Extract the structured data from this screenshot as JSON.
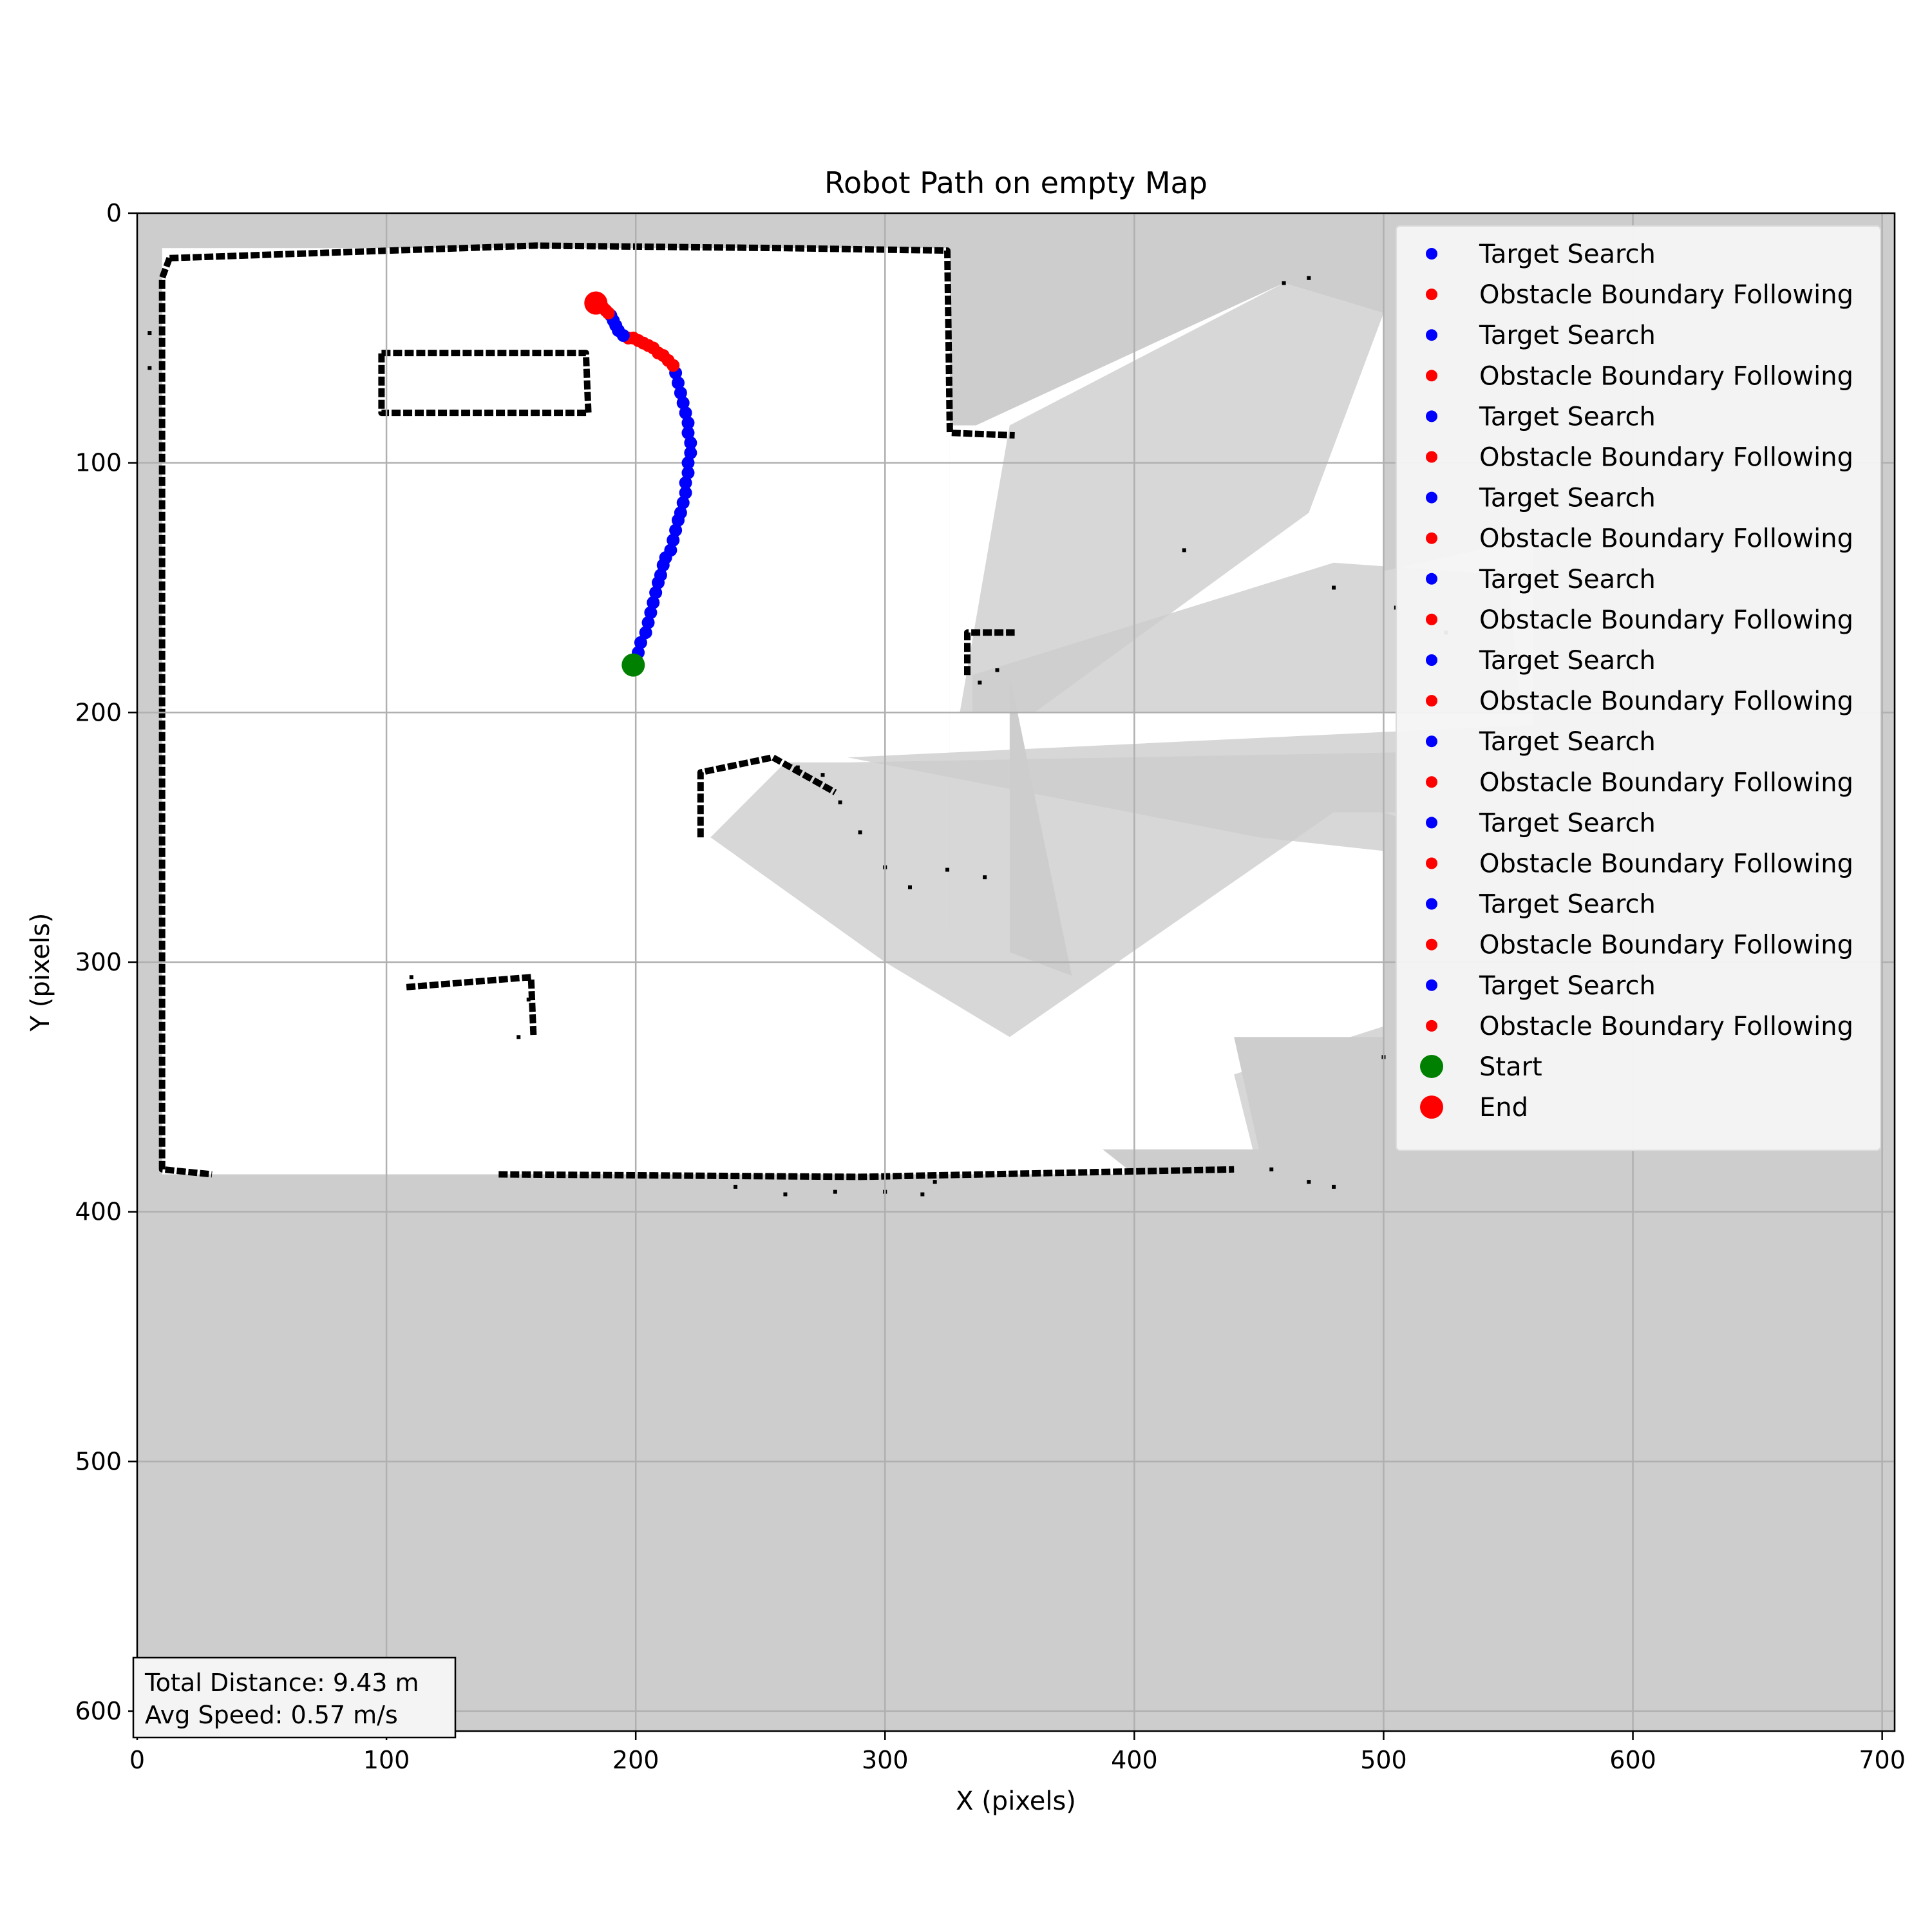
{
  "chart_data": {
    "type": "scatter",
    "title": "Robot Path on empty Map",
    "xlabel": "X (pixels)",
    "ylabel": "Y (pixels)",
    "xlim": [
      0,
      705
    ],
    "ylim": [
      608,
      0
    ],
    "y_inverted": true,
    "grid": true,
    "legend_position": "top-right",
    "xticks": [
      0,
      100,
      200,
      300,
      400,
      500,
      600,
      700
    ],
    "yticks": [
      0,
      100,
      200,
      300,
      400,
      500,
      600
    ],
    "colors": {
      "target_search": "#0000ff",
      "obstacle_boundary_following": "#ff0000",
      "start": "#008000",
      "end": "#ff0000",
      "unknown_area": "#cdcdcd",
      "free_space": "#ffffff",
      "obstacle": "#000000",
      "grid": "#b0b0b0"
    },
    "legend": [
      {
        "label": "Target Search",
        "kind": "target_search"
      },
      {
        "label": "Obstacle Boundary Following",
        "kind": "obstacle_boundary_following"
      },
      {
        "label": "Target Search",
        "kind": "target_search"
      },
      {
        "label": "Obstacle Boundary Following",
        "kind": "obstacle_boundary_following"
      },
      {
        "label": "Target Search",
        "kind": "target_search"
      },
      {
        "label": "Obstacle Boundary Following",
        "kind": "obstacle_boundary_following"
      },
      {
        "label": "Target Search",
        "kind": "target_search"
      },
      {
        "label": "Obstacle Boundary Following",
        "kind": "obstacle_boundary_following"
      },
      {
        "label": "Target Search",
        "kind": "target_search"
      },
      {
        "label": "Obstacle Boundary Following",
        "kind": "obstacle_boundary_following"
      },
      {
        "label": "Target Search",
        "kind": "target_search"
      },
      {
        "label": "Obstacle Boundary Following",
        "kind": "obstacle_boundary_following"
      },
      {
        "label": "Target Search",
        "kind": "target_search"
      },
      {
        "label": "Obstacle Boundary Following",
        "kind": "obstacle_boundary_following"
      },
      {
        "label": "Target Search",
        "kind": "target_search"
      },
      {
        "label": "Obstacle Boundary Following",
        "kind": "obstacle_boundary_following"
      },
      {
        "label": "Target Search",
        "kind": "target_search"
      },
      {
        "label": "Obstacle Boundary Following",
        "kind": "obstacle_boundary_following"
      },
      {
        "label": "Target Search",
        "kind": "target_search"
      },
      {
        "label": "Obstacle Boundary Following",
        "kind": "obstacle_boundary_following"
      },
      {
        "label": "Start",
        "kind": "start"
      },
      {
        "label": "End",
        "kind": "end"
      }
    ],
    "series": [
      {
        "name": "Target Search",
        "kind": "target_search",
        "points": [
          [
            201,
            176
          ],
          [
            202,
            172
          ],
          [
            204,
            168
          ],
          [
            205,
            164
          ],
          [
            206,
            160
          ],
          [
            207,
            156
          ],
          [
            208,
            152
          ],
          [
            209,
            148
          ],
          [
            210,
            145
          ],
          [
            211,
            141
          ],
          [
            212,
            138
          ],
          [
            214,
            135
          ],
          [
            215,
            131
          ],
          [
            216,
            127
          ],
          [
            217,
            123
          ],
          [
            218,
            120
          ],
          [
            219,
            116
          ],
          [
            220,
            112
          ],
          [
            220,
            108
          ],
          [
            221,
            104
          ],
          [
            221,
            100
          ],
          [
            222,
            96
          ],
          [
            222,
            92
          ],
          [
            221,
            88
          ],
          [
            221,
            84
          ],
          [
            220,
            80
          ],
          [
            219,
            76
          ],
          [
            218,
            72
          ],
          [
            217,
            68
          ],
          [
            216,
            64
          ]
        ]
      },
      {
        "name": "Obstacle Boundary Following",
        "kind": "obstacle_boundary_following",
        "points": [
          [
            215,
            61
          ],
          [
            213,
            59
          ],
          [
            211,
            57
          ],
          [
            209,
            56
          ],
          [
            207,
            54
          ],
          [
            205,
            53
          ],
          [
            203,
            52
          ],
          [
            201,
            51
          ],
          [
            199,
            50
          ],
          [
            197,
            50
          ]
        ]
      },
      {
        "name": "Target Search",
        "kind": "target_search",
        "points": [
          [
            195,
            49
          ],
          [
            193,
            47
          ],
          [
            192,
            45
          ],
          [
            191,
            43
          ],
          [
            190,
            41
          ]
        ]
      },
      {
        "name": "Obstacle Boundary Following",
        "kind": "obstacle_boundary_following",
        "points": [
          [
            189,
            40
          ],
          [
            188,
            39
          ],
          [
            187,
            38
          ]
        ]
      }
    ],
    "start": {
      "x": 199,
      "y": 181
    },
    "end": {
      "x": 184,
      "y": 36
    },
    "map": {
      "free_regions": [
        {
          "x1": 10,
          "y1": 14,
          "x2": 326,
          "y2": 385
        },
        {
          "x1": 326,
          "y1": 85,
          "x2": 350,
          "y2": 385
        }
      ],
      "scan_fans": [
        {
          "points": [
            [
              330,
              88
            ],
            [
              460,
              28
            ],
            [
              500,
              40
            ],
            [
              500,
              330
            ],
            [
              380,
              330
            ]
          ]
        },
        {
          "points": [
            [
              335,
              180
            ],
            [
              560,
              130
            ],
            [
              560,
              260
            ],
            [
              500,
              240
            ],
            [
              470,
              210
            ]
          ]
        },
        {
          "points": [
            [
              160,
              308
            ],
            [
              330,
              330
            ],
            [
              400,
              385
            ],
            [
              160,
              385
            ]
          ]
        },
        {
          "points": [
            [
              228,
              250
            ],
            [
              440,
              330
            ],
            [
              450,
              375
            ],
            [
              250,
              375
            ]
          ]
        }
      ],
      "grey_patches": [
        {
          "points": [
            [
              350,
              85
            ],
            [
              460,
              28
            ],
            [
              500,
              40
            ],
            [
              470,
              120
            ],
            [
              360,
              200
            ],
            [
              330,
              200
            ]
          ]
        },
        {
          "points": [
            [
              335,
              185
            ],
            [
              480,
              140
            ],
            [
              550,
              145
            ],
            [
              555,
              200
            ],
            [
              335,
              200
            ]
          ]
        },
        {
          "points": [
            [
              230,
              250
            ],
            [
              260,
              220
            ],
            [
              285,
              220
            ],
            [
              560,
              215
            ],
            [
              560,
              240
            ],
            [
              480,
              240
            ],
            [
              350,
              330
            ],
            [
              300,
              300
            ]
          ]
        },
        {
          "points": [
            [
              440,
              345
            ],
            [
              580,
              300
            ],
            [
              600,
              390
            ],
            [
              450,
              385
            ]
          ]
        },
        {
          "points": [
            [
              285,
              218
            ],
            [
              560,
              205
            ],
            [
              560,
              262
            ],
            [
              450,
              250
            ]
          ]
        }
      ],
      "walls": [
        {
          "points": [
            [
              13,
              18
            ],
            [
              160,
              13
            ],
            [
              260,
              14
            ],
            [
              325,
              15
            ],
            [
              326,
              88
            ],
            [
              352,
              89
            ]
          ]
        },
        {
          "points": [
            [
              13,
              18
            ],
            [
              10,
              26
            ],
            [
              10,
              383
            ],
            [
              30,
              385
            ]
          ]
        },
        {
          "points": [
            [
              145,
              385
            ],
            [
              290,
              386
            ],
            [
              440,
              383
            ]
          ]
        },
        {
          "points": [
            [
              98,
              56
            ],
            [
              180,
              56
            ],
            [
              181,
              80
            ],
            [
              98,
              80
            ],
            [
              98,
              56
            ]
          ]
        },
        {
          "points": [
            [
              108,
              310
            ],
            [
              158,
              306
            ],
            [
              159,
              330
            ]
          ]
        },
        {
          "points": [
            [
              226,
              250
            ],
            [
              226,
              224
            ],
            [
              255,
              218
            ],
            [
              280,
              232
            ]
          ]
        },
        {
          "points": [
            [
              333,
              185
            ],
            [
              333,
              168
            ],
            [
              352,
              168
            ]
          ]
        }
      ],
      "sparse_dots": [
        {
          "points": [
            [
              5,
              48
            ],
            [
              5,
              62
            ],
            [
              110,
              306
            ],
            [
              115,
              309
            ],
            [
              153,
              330
            ],
            [
              157,
              315
            ],
            [
              240,
              390
            ],
            [
              260,
              393
            ],
            [
              280,
              392
            ],
            [
              300,
              392
            ],
            [
              315,
              393
            ],
            [
              320,
              388
            ],
            [
              265,
              222
            ],
            [
              275,
              225
            ],
            [
              282,
              236
            ],
            [
              290,
              248
            ],
            [
              300,
              262
            ],
            [
              310,
              270
            ],
            [
              325,
              263
            ],
            [
              340,
              266
            ],
            [
              338,
              188
            ],
            [
              345,
              183
            ],
            [
              460,
              28
            ],
            [
              470,
              26
            ],
            [
              420,
              135
            ],
            [
              480,
              150
            ],
            [
              505,
              158
            ],
            [
              525,
              168
            ],
            [
              500,
              338
            ],
            [
              480,
              390
            ],
            [
              470,
              388
            ],
            [
              455,
              383
            ]
          ]
        }
      ]
    }
  },
  "stats": {
    "line1": "Total Distance: 9.43 m",
    "line2": "Avg Speed: 0.57 m/s"
  }
}
